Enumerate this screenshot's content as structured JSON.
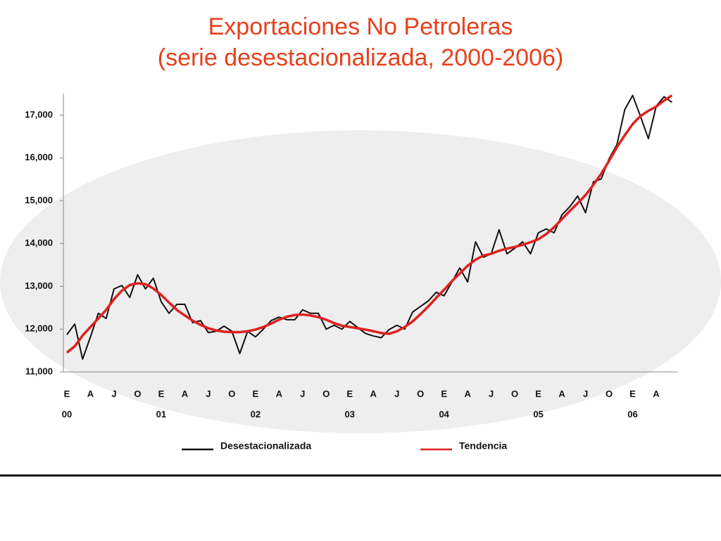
{
  "chart_data": {
    "type": "line",
    "title": "Exportaciones No Petroleras",
    "subtitle": "(serie desestacionalizada, 2000-2006)",
    "categories": [
      "E",
      null,
      null,
      "A",
      null,
      null,
      "J",
      null,
      null,
      "O",
      null,
      null,
      "E",
      null,
      null,
      "A",
      null,
      null,
      "J",
      null,
      null,
      "O",
      null,
      null,
      "E",
      null,
      null,
      "A",
      null,
      null,
      "J",
      null,
      null,
      "O",
      null,
      null,
      "E",
      null,
      null,
      "A",
      null,
      null,
      "J",
      null,
      null,
      "O",
      null,
      null,
      "E",
      null,
      null,
      "A",
      null,
      null,
      "J",
      null,
      null,
      "O",
      null,
      null,
      "E",
      null,
      null,
      "A",
      null,
      null,
      "J",
      null,
      null,
      "O",
      null,
      null,
      "E",
      null,
      null,
      "A",
      null,
      null
    ],
    "year_labels": [
      "00",
      null,
      null,
      null,
      null,
      null,
      null,
      null,
      null,
      null,
      null,
      null,
      "01",
      null,
      null,
      null,
      null,
      null,
      null,
      null,
      null,
      null,
      null,
      null,
      "02",
      null,
      null,
      null,
      null,
      null,
      null,
      null,
      null,
      null,
      null,
      null,
      "03",
      null,
      null,
      null,
      null,
      null,
      null,
      null,
      null,
      null,
      null,
      null,
      "04",
      null,
      null,
      null,
      null,
      null,
      null,
      null,
      null,
      null,
      null,
      null,
      "05",
      null,
      null,
      null,
      null,
      null,
      null,
      null,
      null,
      null,
      null,
      null,
      "06",
      null,
      null,
      null,
      null,
      null
    ],
    "series": [
      {
        "name": "Desestacionalizada",
        "color": "#111111",
        "values": [
          11870,
          12120,
          11300,
          11820,
          12370,
          12250,
          12940,
          13020,
          12740,
          13270,
          12940,
          13190,
          12640,
          12370,
          12580,
          12580,
          12150,
          12200,
          11920,
          11950,
          12070,
          11950,
          11430,
          11950,
          11820,
          12000,
          12200,
          12280,
          12220,
          12220,
          12450,
          12370,
          12370,
          12000,
          12090,
          12000,
          12180,
          12040,
          11900,
          11840,
          11800,
          11990,
          12090,
          12000,
          12400,
          12530,
          12660,
          12860,
          12780,
          13100,
          13430,
          13100,
          14040,
          13680,
          13760,
          14320,
          13760,
          13890,
          14040,
          13760,
          14250,
          14340,
          14250,
          14670,
          14860,
          15110,
          14720,
          15440,
          15510,
          15980,
          16310,
          17130,
          17460,
          16970,
          16450,
          17210,
          17430,
          17300
        ]
      },
      {
        "name": "Tendencia",
        "color": "#e02020",
        "values": [
          11450,
          11600,
          11850,
          12050,
          12250,
          12450,
          12700,
          12900,
          13030,
          13070,
          13050,
          12950,
          12800,
          12620,
          12450,
          12320,
          12200,
          12100,
          12020,
          11970,
          11940,
          11930,
          11930,
          11950,
          11990,
          12050,
          12130,
          12220,
          12290,
          12330,
          12340,
          12320,
          12280,
          12220,
          12140,
          12080,
          12050,
          12020,
          11990,
          11950,
          11910,
          11890,
          11950,
          12050,
          12180,
          12350,
          12530,
          12730,
          12920,
          13120,
          13300,
          13480,
          13620,
          13720,
          13760,
          13830,
          13880,
          13920,
          13970,
          14030,
          14100,
          14220,
          14380,
          14570,
          14760,
          14940,
          15130,
          15370,
          15630,
          15930,
          16250,
          16530,
          16790,
          16980,
          17100,
          17200,
          17340,
          17460
        ]
      }
    ],
    "ylim": [
      11000,
      17500
    ],
    "yticks": [
      {
        "value": 11000,
        "label": "11,000"
      },
      {
        "value": 12000,
        "label": "12,000"
      },
      {
        "value": 13000,
        "label": "13,000"
      },
      {
        "value": 14000,
        "label": "14,000"
      },
      {
        "value": 15000,
        "label": "15,000"
      },
      {
        "value": 16000,
        "label": "16,000"
      },
      {
        "value": 17000,
        "label": "17,000"
      }
    ]
  }
}
